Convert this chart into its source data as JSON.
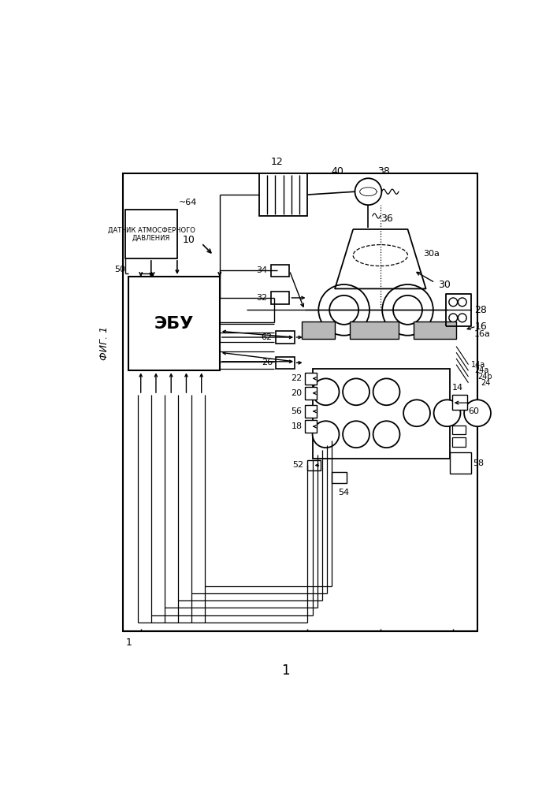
{
  "background": "#ffffff",
  "line_color": "#000000",
  "fig_label": "ФИГ. 1",
  "page_number": "1",
  "sensor_text": "ДАТЧИК АТМОСФЕРНОГО\nДАВЛЕНИЯ",
  "ecu_text": "ЭБУ",
  "gray_fill": "#b8b8b8"
}
